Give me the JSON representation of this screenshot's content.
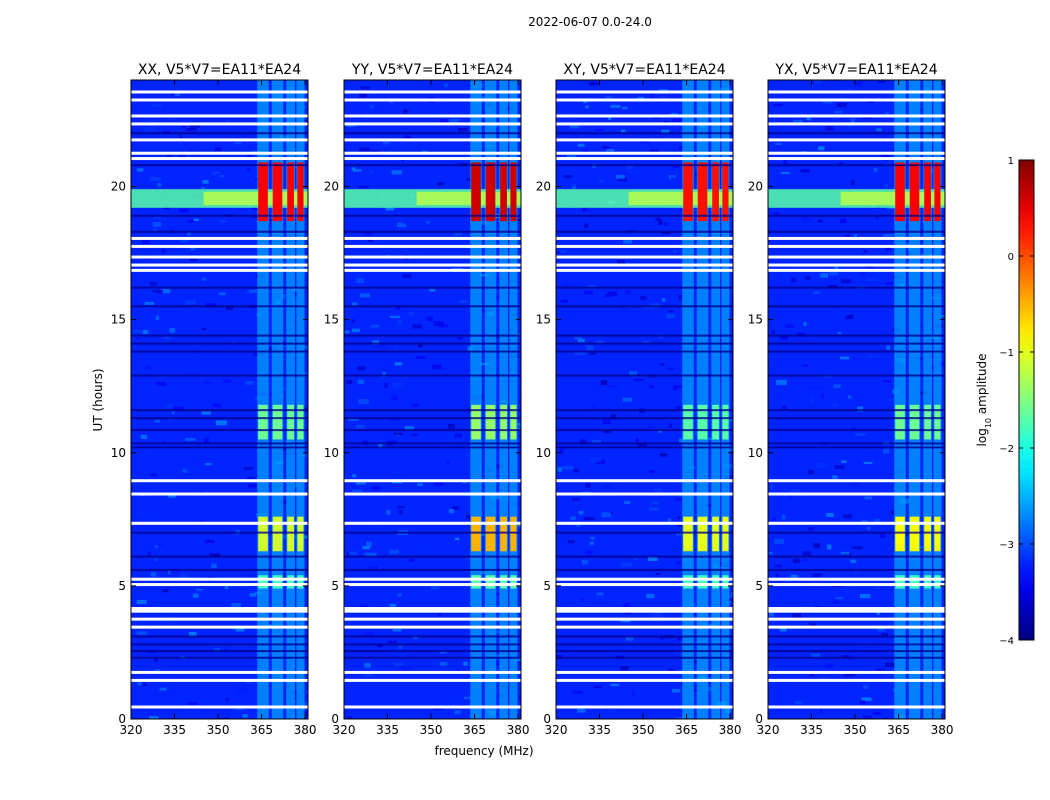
{
  "figure": {
    "title": "2022-06-07 0.0-24.0"
  },
  "chart_data": {
    "type": "heatmap",
    "title": "2022-06-07 0.0-24.0",
    "xlabel": "frequency (MHz)",
    "ylabel": "UT (hours)",
    "xlim": [
      320,
      381
    ],
    "ylim": [
      0,
      24
    ],
    "xticks": [
      320,
      335,
      350,
      365,
      380
    ],
    "yticks": [
      0,
      5,
      10,
      15,
      20
    ],
    "panels": [
      {
        "title": "XX, V5*V7=EA11*EA24",
        "polarization": "XX"
      },
      {
        "title": "YY, V5*V7=EA11*EA24",
        "polarization": "YY"
      },
      {
        "title": "XY, V5*V7=EA11*EA24",
        "polarization": "XY"
      },
      {
        "title": "YX, V5*V7=EA11*EA24",
        "polarization": "YX"
      }
    ],
    "background_level": -3.2,
    "interference_bands_mhz": [
      [
        363.5,
        367.5
      ],
      [
        368.5,
        372.5
      ],
      [
        373.5,
        376.5
      ],
      [
        377.0,
        379.8
      ]
    ],
    "broadband_event": {
      "ut_start": 19.2,
      "ut_end": 19.9,
      "level": -1.7
    },
    "features": [
      {
        "ut_start": 18.7,
        "ut_end": 20.9,
        "level_xx": 0.4,
        "level_yy": 0.6,
        "level_xy": 0.3,
        "level_yx": 0.4
      },
      {
        "ut_start": 6.3,
        "ut_end": 7.6,
        "level_xx": -1.1,
        "level_yy": -0.5,
        "level_xy": -1.0,
        "level_yx": -0.9
      },
      {
        "ut_start": 10.5,
        "ut_end": 11.8,
        "level_xx": -1.6,
        "level_yy": -1.4,
        "level_xy": -1.7,
        "level_yx": -1.6
      },
      {
        "ut_start": 4.9,
        "ut_end": 5.4,
        "level_xx": -1.8,
        "level_yy": -1.7,
        "level_xy": -1.8,
        "level_yx": -1.8
      }
    ],
    "flagged_ut_white": [
      0.45,
      1.45,
      1.75,
      3.45,
      3.75,
      4.05,
      4.15,
      5.05,
      5.25,
      7.35,
      8.45,
      8.95,
      16.85,
      17.05,
      17.35,
      17.75,
      18.05,
      21.05,
      21.25,
      21.75,
      22.35,
      22.65,
      23.25,
      23.55
    ],
    "flagged_ut_dark": [
      2.3,
      2.55,
      2.8,
      3.1,
      5.6,
      6.1,
      7.0,
      10.2,
      10.35,
      10.85,
      11.3,
      11.6,
      12.9,
      13.8,
      14.1,
      14.4,
      15.5,
      16.2,
      18.3,
      18.9,
      20.8,
      22.0
    ],
    "colorbar": {
      "label": "log10 amplitude",
      "label_base": "log",
      "label_sub": "10",
      "label_tail": " amplitude",
      "ticks": [
        1,
        0,
        -1,
        -2,
        -3,
        -4
      ],
      "range": [
        -4,
        1
      ],
      "colormap": "jet"
    }
  }
}
